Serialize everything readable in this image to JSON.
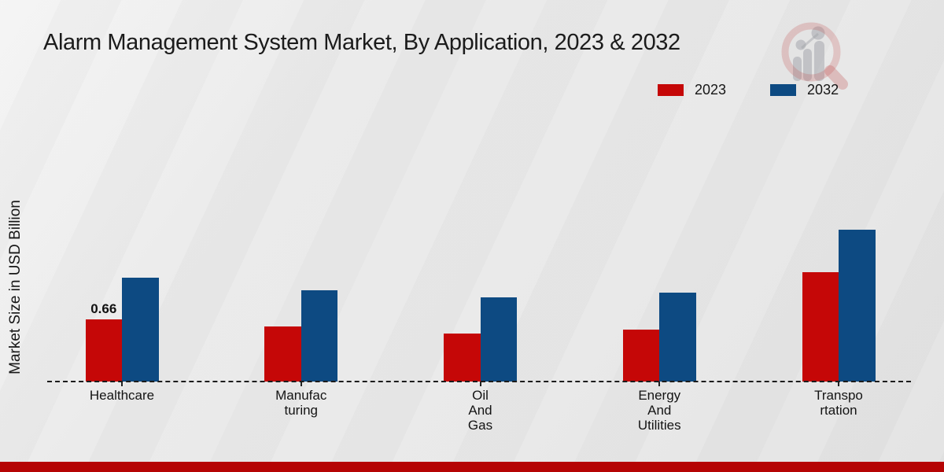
{
  "page": {
    "footer_color": "#b50404"
  },
  "chart_data": {
    "type": "bar",
    "title": "Alarm Management System Market, By Application, 2023 & 2032",
    "ylabel": "Market Size in USD Billion",
    "xlabel": "",
    "units": "USD Billion",
    "grid": false,
    "legend_position": "top-right",
    "baseline_style": "dashed",
    "ylim": [
      0,
      1.8
    ],
    "categories": [
      {
        "id": "healthcare",
        "name": "Healthcare",
        "label_lines": [
          "Healthcare"
        ]
      },
      {
        "id": "manufacturing",
        "name": "Manufacturing",
        "label_lines": [
          "Manufac",
          "turing"
        ]
      },
      {
        "id": "oil-and-gas",
        "name": "Oil And Gas",
        "label_lines": [
          "Oil",
          "And",
          "Gas"
        ]
      },
      {
        "id": "energy-and-utilities",
        "name": "Energy And Utilities",
        "label_lines": [
          "Energy",
          "And",
          "Utilities"
        ]
      },
      {
        "id": "transportation",
        "name": "Transportation",
        "label_lines": [
          "Transpo",
          "rtation"
        ]
      }
    ],
    "series": [
      {
        "name": "2023",
        "color": "#c50707",
        "values": [
          0.66,
          0.58,
          0.51,
          0.55,
          1.16
        ],
        "value_labels": [
          "0.66",
          "",
          "",
          "",
          ""
        ]
      },
      {
        "name": "2032",
        "color": "#0d4a82",
        "values": [
          1.1,
          0.97,
          0.89,
          0.94,
          1.61
        ],
        "value_labels": [
          "",
          "",
          "",
          "",
          ""
        ]
      }
    ]
  },
  "watermark": {
    "icon": "magnifier-bar-chart-logo",
    "ring_color": "rgba(186,58,58,0.25)",
    "glyph_color": "rgba(148,150,158,0.5)"
  }
}
